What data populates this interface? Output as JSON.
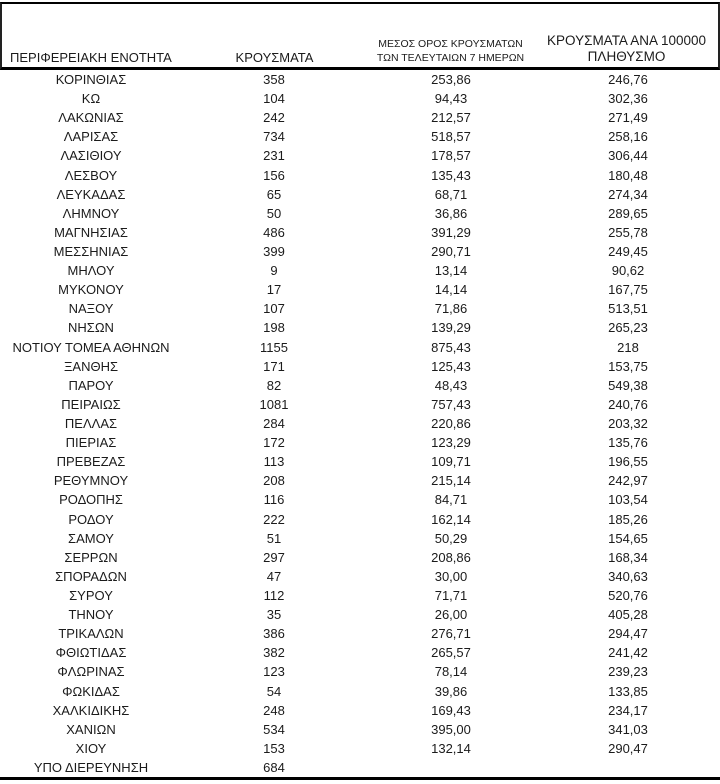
{
  "colors": {
    "background": "#ffffff",
    "text": "#1b1b1b",
    "border": "#000000"
  },
  "table": {
    "headers": {
      "region": "ΠΕΡΙΦΕΡΕΙΑΚΗ ΕΝΟΤΗΤΑ",
      "cases": "ΚΡΟΥΣΜΑΤΑ",
      "avg7_line1": "ΜΕΣΟΣ ΟΡΟΣ ΚΡΟΥΣΜΑΤΩΝ",
      "avg7_line2": "ΤΩΝ ΤΕΛΕΥΤΑΙΩΝ 7 ΗΜΕΡΩΝ",
      "per100k_line1": "ΚΡΟΥΣΜΑΤΑ ΑΝΑ 100000",
      "per100k_line2": "ΠΛΗΘΥΣΜΟ"
    },
    "rows": [
      [
        "ΚΟΡΙΝΘΙΑΣ",
        "358",
        "253,86",
        "246,76"
      ],
      [
        "ΚΩ",
        "104",
        "94,43",
        "302,36"
      ],
      [
        "ΛΑΚΩΝΙΑΣ",
        "242",
        "212,57",
        "271,49"
      ],
      [
        "ΛΑΡΙΣΑΣ",
        "734",
        "518,57",
        "258,16"
      ],
      [
        "ΛΑΣΙΘΙΟΥ",
        "231",
        "178,57",
        "306,44"
      ],
      [
        "ΛΕΣΒΟΥ",
        "156",
        "135,43",
        "180,48"
      ],
      [
        "ΛΕΥΚΑΔΑΣ",
        "65",
        "68,71",
        "274,34"
      ],
      [
        "ΛΗΜΝΟΥ",
        "50",
        "36,86",
        "289,65"
      ],
      [
        "ΜΑΓΝΗΣΙΑΣ",
        "486",
        "391,29",
        "255,78"
      ],
      [
        "ΜΕΣΣΗΝΙΑΣ",
        "399",
        "290,71",
        "249,45"
      ],
      [
        "ΜΗΛΟΥ",
        "9",
        "13,14",
        "90,62"
      ],
      [
        "ΜΥΚΟΝΟΥ",
        "17",
        "14,14",
        "167,75"
      ],
      [
        "ΝΑΞΟΥ",
        "107",
        "71,86",
        "513,51"
      ],
      [
        "ΝΗΣΩΝ",
        "198",
        "139,29",
        "265,23"
      ],
      [
        "ΝΟΤΙΟΥ ΤΟΜΕΑ ΑΘΗΝΩΝ",
        "1155",
        "875,43",
        "218"
      ],
      [
        "ΞΑΝΘΗΣ",
        "171",
        "125,43",
        "153,75"
      ],
      [
        "ΠΑΡΟΥ",
        "82",
        "48,43",
        "549,38"
      ],
      [
        "ΠΕΙΡΑΙΩΣ",
        "1081",
        "757,43",
        "240,76"
      ],
      [
        "ΠΕΛΛΑΣ",
        "284",
        "220,86",
        "203,32"
      ],
      [
        "ΠΙΕΡΙΑΣ",
        "172",
        "123,29",
        "135,76"
      ],
      [
        "ΠΡΕΒΕΖΑΣ",
        "113",
        "109,71",
        "196,55"
      ],
      [
        "ΡΕΘΥΜΝΟΥ",
        "208",
        "215,14",
        "242,97"
      ],
      [
        "ΡΟΔΟΠΗΣ",
        "116",
        "84,71",
        "103,54"
      ],
      [
        "ΡΟΔΟΥ",
        "222",
        "162,14",
        "185,26"
      ],
      [
        "ΣΑΜΟΥ",
        "51",
        "50,29",
        "154,65"
      ],
      [
        "ΣΕΡΡΩΝ",
        "297",
        "208,86",
        "168,34"
      ],
      [
        "ΣΠΟΡΑΔΩΝ",
        "47",
        "30,00",
        "340,63"
      ],
      [
        "ΣΥΡΟΥ",
        "112",
        "71,71",
        "520,76"
      ],
      [
        "ΤΗΝΟΥ",
        "35",
        "26,00",
        "405,28"
      ],
      [
        "ΤΡΙΚΑΛΩΝ",
        "386",
        "276,71",
        "294,47"
      ],
      [
        "ΦΘΙΩΤΙΔΑΣ",
        "382",
        "265,57",
        "241,42"
      ],
      [
        "ΦΛΩΡΙΝΑΣ",
        "123",
        "78,14",
        "239,23"
      ],
      [
        "ΦΩΚΙΔΑΣ",
        "54",
        "39,86",
        "133,85"
      ],
      [
        "ΧΑΛΚΙΔΙΚΗΣ",
        "248",
        "169,43",
        "234,17"
      ],
      [
        "ΧΑΝΙΩΝ",
        "534",
        "395,00",
        "341,03"
      ],
      [
        "ΧΙΟΥ",
        "153",
        "132,14",
        "290,47"
      ],
      [
        "ΥΠΟ ΔΙΕΡΕΥΝΗΣΗ",
        "684",
        "",
        ""
      ]
    ]
  }
}
